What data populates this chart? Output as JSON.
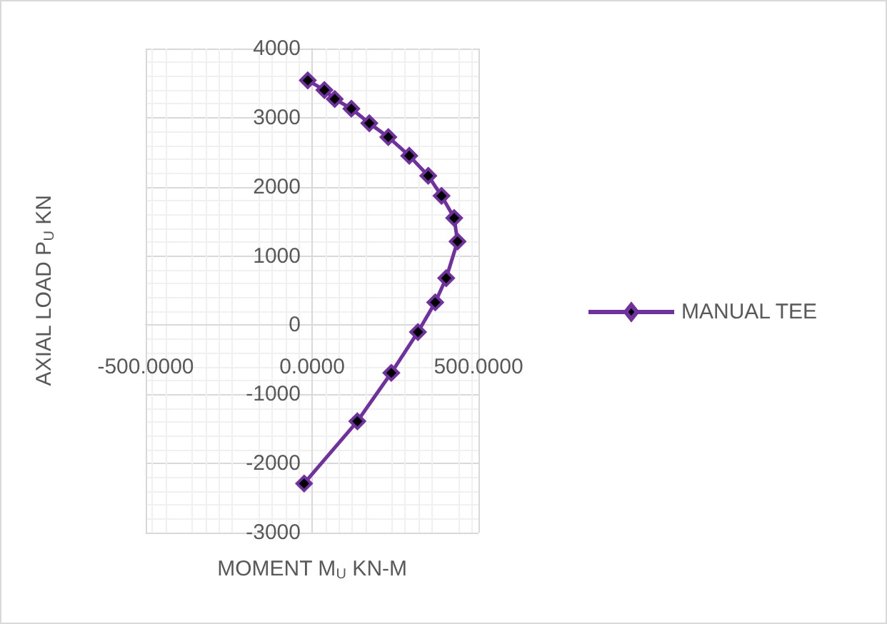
{
  "chart_data": {
    "type": "line",
    "xlabel": "MOMENT M$_{U}$ KN-M",
    "ylabel": "AXIAL LOAD P$_{U}$ KN",
    "series": [
      {
        "name": "MANUAL TEE",
        "color": "#7030a0",
        "x": [
          -13,
          37,
          68,
          118,
          172,
          229,
          292,
          349,
          389,
          427,
          437,
          403,
          370,
          318,
          238,
          136,
          -24
        ],
        "values": [
          3540,
          3400,
          3270,
          3130,
          2920,
          2720,
          2450,
          2160,
          1870,
          1550,
          1210,
          680,
          330,
          -100,
          -690,
          -1390,
          -2290
        ]
      }
    ],
    "xlim": [
      -500,
      500
    ],
    "ylim": [
      -3000,
      4000
    ],
    "xticks": [
      {
        "value": -500,
        "label": "-500.0000"
      },
      {
        "value": 0,
        "label": "0.0000"
      },
      {
        "value": 500,
        "label": "500.0000"
      }
    ],
    "yticks": [
      -3000,
      -2000,
      -1000,
      0,
      1000,
      2000,
      3000,
      4000
    ],
    "grid": true,
    "legend": "right",
    "marker": "diamond",
    "line_style": "solid"
  }
}
